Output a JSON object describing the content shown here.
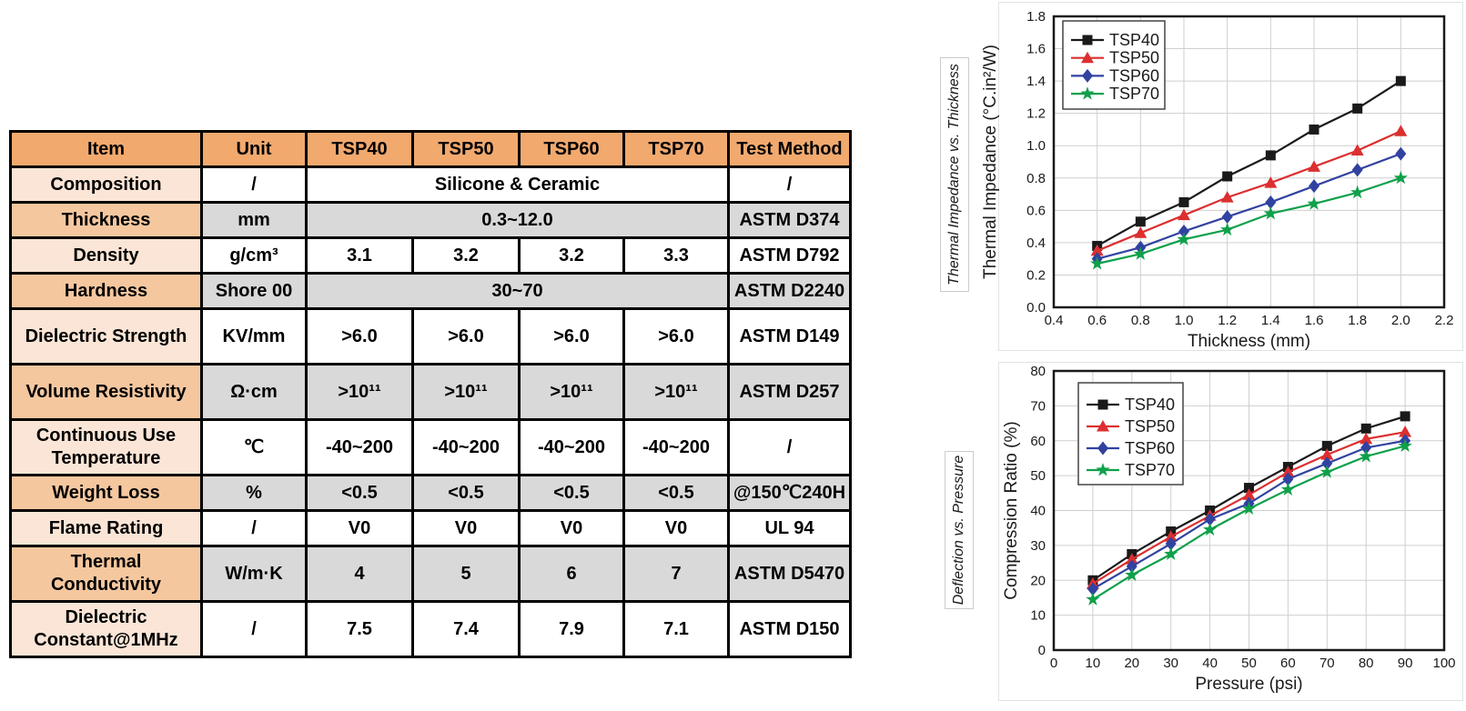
{
  "table": {
    "headers": [
      "Item",
      "Unit",
      "TSP40",
      "TSP50",
      "TSP60",
      "TSP70",
      "Test Method"
    ],
    "rows": [
      {
        "item": "Composition",
        "unit": "/",
        "values": [
          "Silicone & Ceramic"
        ],
        "method": "/"
      },
      {
        "item": "Thickness",
        "unit": "mm",
        "values": [
          "0.3~12.0"
        ],
        "method": "ASTM D374"
      },
      {
        "item": "Density",
        "unit": "g/cm³",
        "values": [
          "3.1",
          "3.2",
          "3.2",
          "3.3"
        ],
        "method": "ASTM D792"
      },
      {
        "item": "Hardness",
        "unit": "Shore 00",
        "values": [
          "30~70"
        ],
        "method": "ASTM D2240"
      },
      {
        "item": "Dielectric Strength",
        "unit": "KV/mm",
        "values": [
          ">6.0",
          ">6.0",
          ">6.0",
          ">6.0"
        ],
        "method": "ASTM D149"
      },
      {
        "item": "Volume Resistivity",
        "unit": "Ω·cm",
        "values": [
          ">10¹¹",
          ">10¹¹",
          ">10¹¹",
          ">10¹¹"
        ],
        "method": "ASTM D257"
      },
      {
        "item": "Continuous Use Temperature",
        "unit": "℃",
        "values": [
          "-40~200",
          "-40~200",
          "-40~200",
          "-40~200"
        ],
        "method": "/"
      },
      {
        "item": "Weight Loss",
        "unit": "%",
        "values": [
          "<0.5",
          "<0.5",
          "<0.5",
          "<0.5"
        ],
        "method": "@150℃240H"
      },
      {
        "item": "Flame Rating",
        "unit": "/",
        "values": [
          "V0",
          "V0",
          "V0",
          "V0"
        ],
        "method": "UL 94"
      },
      {
        "item": "Thermal Conductivity",
        "unit": "W/m·K",
        "values": [
          "4",
          "5",
          "6",
          "7"
        ],
        "method": "ASTM D5470"
      },
      {
        "item": "Dielectric Constant@1MHz",
        "unit": "/",
        "values": [
          "7.5",
          "7.4",
          "7.9",
          "7.1"
        ],
        "method": "ASTM D150"
      }
    ],
    "colors": {
      "header": "#F2A96E",
      "item_light": "#FBE5D6",
      "item_dark": "#F5C79F",
      "row_gray": "#D9D9D9",
      "row_white": "#FFFFFF"
    }
  },
  "chart_data": [
    {
      "type": "line",
      "side_label": "Thermal Impedance vs. Thickness",
      "xlabel": "Thickness (mm)",
      "ylabel": "Thermal Impedance (°C.in²/W)",
      "xlim": [
        0.4,
        2.2
      ],
      "xstep": 0.2,
      "xtick_decimals": 1,
      "ylim": [
        0.0,
        1.8
      ],
      "ystep": 0.2,
      "ytick_decimals": 1,
      "grid": true,
      "legend_position": "top-left",
      "x": [
        0.6,
        0.8,
        1.0,
        1.2,
        1.4,
        1.6,
        1.8,
        2.0
      ],
      "series": [
        {
          "name": "TSP40",
          "color": "#1a1a1a",
          "marker": "square",
          "values": [
            0.38,
            0.53,
            0.65,
            0.81,
            0.94,
            1.1,
            1.23,
            1.4
          ]
        },
        {
          "name": "TSP50",
          "color": "#dc2f2f",
          "marker": "triangle",
          "values": [
            0.35,
            0.46,
            0.57,
            0.68,
            0.77,
            0.87,
            0.97,
            1.09
          ]
        },
        {
          "name": "TSP60",
          "color": "#3142a0",
          "marker": "diamond",
          "values": [
            0.3,
            0.37,
            0.47,
            0.56,
            0.65,
            0.75,
            0.85,
            0.95
          ]
        },
        {
          "name": "TSP70",
          "color": "#0fa04a",
          "marker": "star",
          "values": [
            0.27,
            0.33,
            0.42,
            0.48,
            0.58,
            0.64,
            0.71,
            0.8
          ]
        }
      ]
    },
    {
      "type": "line",
      "side_label": "Deflection vs. Pressure",
      "xlabel": "Pressure (psi)",
      "ylabel": "Compression Ratio (%)",
      "xlim": [
        0,
        100
      ],
      "xstep": 10,
      "xtick_decimals": 0,
      "ylim": [
        0,
        80
      ],
      "ystep": 10,
      "ytick_decimals": 0,
      "grid": true,
      "legend_position": "top-left",
      "x": [
        10,
        20,
        30,
        40,
        50,
        60,
        70,
        80,
        90
      ],
      "series": [
        {
          "name": "TSP40",
          "color": "#1a1a1a",
          "marker": "square",
          "values": [
            20.0,
            27.5,
            34.0,
            40.0,
            46.5,
            52.5,
            58.5,
            63.5,
            67.0
          ]
        },
        {
          "name": "TSP50",
          "color": "#dc2f2f",
          "marker": "triangle",
          "values": [
            19.0,
            26.0,
            32.5,
            38.5,
            44.5,
            51.0,
            56.0,
            60.5,
            62.5
          ]
        },
        {
          "name": "TSP60",
          "color": "#3142a0",
          "marker": "diamond",
          "values": [
            17.5,
            24.0,
            30.5,
            37.5,
            42.0,
            49.0,
            53.5,
            58.0,
            60.0
          ]
        },
        {
          "name": "TSP70",
          "color": "#0fa04a",
          "marker": "star",
          "values": [
            14.5,
            21.5,
            27.5,
            34.5,
            40.5,
            46.0,
            51.0,
            55.5,
            58.5
          ]
        }
      ]
    }
  ]
}
